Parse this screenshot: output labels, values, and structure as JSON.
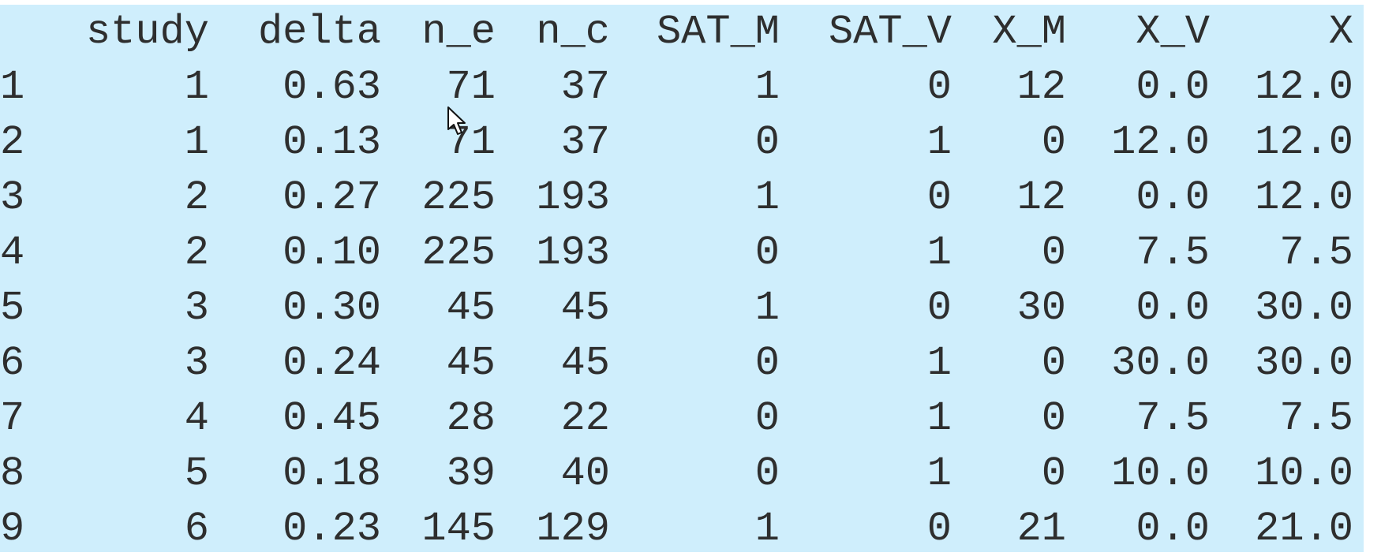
{
  "dataframe": {
    "columns": [
      "",
      "study",
      "delta",
      "n_e",
      "n_c",
      "SAT_M",
      "SAT_V",
      "X_M",
      "X_V",
      "X"
    ],
    "rows": [
      [
        "1",
        "1",
        "0.63",
        "71",
        "37",
        "1",
        "0",
        "12",
        "0.0",
        "12.0"
      ],
      [
        "2",
        "1",
        "0.13",
        "71",
        "37",
        "0",
        "1",
        "0",
        "12.0",
        "12.0"
      ],
      [
        "3",
        "2",
        "0.27",
        "225",
        "193",
        "1",
        "0",
        "12",
        "0.0",
        "12.0"
      ],
      [
        "4",
        "2",
        "0.10",
        "225",
        "193",
        "0",
        "1",
        "0",
        "7.5",
        "7.5"
      ],
      [
        "5",
        "3",
        "0.30",
        "45",
        "45",
        "1",
        "0",
        "30",
        "0.0",
        "30.0"
      ],
      [
        "6",
        "3",
        "0.24",
        "45",
        "45",
        "0",
        "1",
        "0",
        "30.0",
        "30.0"
      ],
      [
        "7",
        "4",
        "0.45",
        "28",
        "22",
        "0",
        "1",
        "0",
        "7.5",
        "7.5"
      ],
      [
        "8",
        "5",
        "0.18",
        "39",
        "40",
        "0",
        "1",
        "0",
        "10.0",
        "10.0"
      ],
      [
        "9",
        "6",
        "0.23",
        "145",
        "129",
        "1",
        "0",
        "21",
        "0.0",
        "21.0"
      ]
    ]
  },
  "colors": {
    "panel_background": "#cfeefc",
    "text": "#2e2e2e"
  },
  "icons": {
    "cursor": "mouse-pointer-icon"
  }
}
